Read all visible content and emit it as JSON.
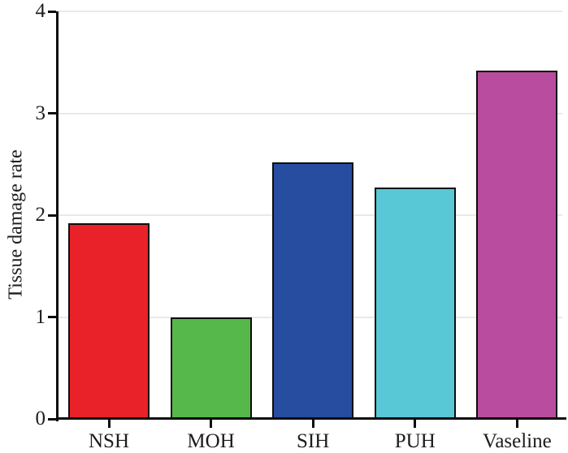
{
  "chart_data": {
    "type": "bar",
    "title": "",
    "xlabel": "",
    "ylabel": "Tissue damage rate",
    "categories": [
      "NSH",
      "MOH",
      "SIH",
      "PUH",
      "Vaseline"
    ],
    "values": [
      1.92,
      1.0,
      2.52,
      2.27,
      3.42
    ],
    "bar_colors": [
      "#e92128",
      "#56b84a",
      "#274da1",
      "#58c8d6",
      "#b94c9e"
    ],
    "bar_edge_color": "#0d0d0d",
    "ylim": [
      0,
      4
    ],
    "yticks": [
      0,
      1,
      2,
      3,
      4
    ],
    "grid": true,
    "gridline_color": "#e9e9e9",
    "legend": "none",
    "background": "#ffffff"
  }
}
